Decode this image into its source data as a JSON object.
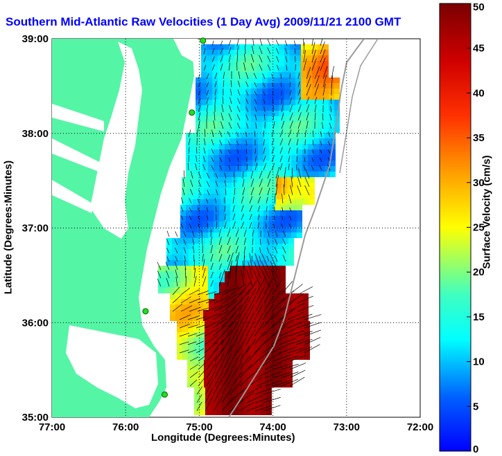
{
  "title": "Southern Mid-Atlantic Raw Velocities (1 Day Avg) 2009/11/21 2100 GMT",
  "xlabel": "Longitude (Degrees:Minutes)",
  "ylabel": "Latitude (Degrees:Minutes)",
  "colorbar": {
    "label": "Surface Velocity (cm/s)",
    "min": 0,
    "max": 50,
    "ticks": [
      {
        "value": 0,
        "label": "0"
      },
      {
        "value": 5,
        "label": "5"
      },
      {
        "value": 10,
        "label": "10"
      },
      {
        "value": 15,
        "label": "15"
      },
      {
        "value": 20,
        "label": "20"
      },
      {
        "value": 25,
        "label": "25"
      },
      {
        "value": 30,
        "label": "30"
      },
      {
        "value": 35,
        "label": "35"
      },
      {
        "value": 40,
        "label": "40"
      },
      {
        "value": 45,
        "label": "45"
      },
      {
        "value": 50,
        "label": "50"
      }
    ]
  },
  "map": {
    "lon_range": [
      -77,
      -72
    ],
    "lat_range": [
      35,
      39
    ],
    "x_ticks": [
      {
        "value": -77,
        "label": "77:00"
      },
      {
        "value": -76,
        "label": "76:00"
      },
      {
        "value": -75,
        "label": "75:00"
      },
      {
        "value": -74,
        "label": "74:00"
      },
      {
        "value": -73,
        "label": "73:00"
      },
      {
        "value": -72,
        "label": "72:00"
      }
    ],
    "y_ticks": [
      {
        "value": 35,
        "label": "35:00"
      },
      {
        "value": 36,
        "label": "36:00"
      },
      {
        "value": 37,
        "label": "37:00"
      },
      {
        "value": 38,
        "label": "38:00"
      },
      {
        "value": 39,
        "label": "39:00"
      }
    ],
    "grid": "dotted",
    "land_color": "#55f5a6",
    "water_color": "#ffffff",
    "radar_sites": [
      {
        "lon": -74.95,
        "lat": 38.98
      },
      {
        "lon": -75.1,
        "lat": 38.22
      },
      {
        "lon": -75.73,
        "lat": 36.12
      },
      {
        "lon": -75.47,
        "lat": 35.24
      }
    ]
  }
}
